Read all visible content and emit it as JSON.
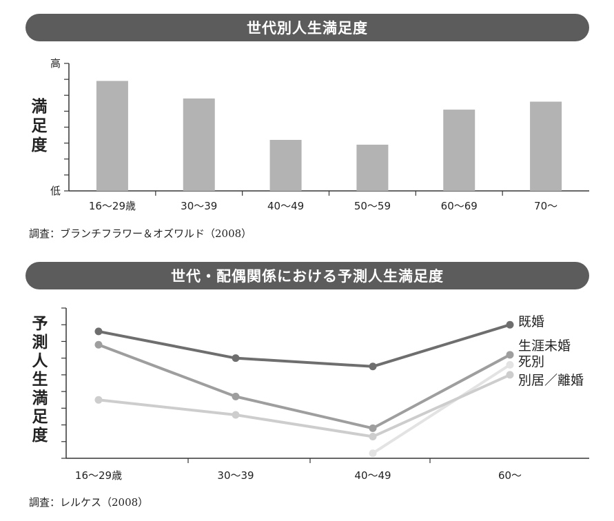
{
  "chart_data": [
    {
      "type": "bar",
      "title": "世代別人生満足度",
      "ylabel": "満足度",
      "y_tick_high": "高",
      "y_tick_low": "低",
      "ylim": [
        0,
        8
      ],
      "grid": false,
      "categories": [
        "16～29歳",
        "30～39",
        "40～49",
        "50～59",
        "60～69",
        "70～"
      ],
      "values": [
        6.9,
        5.8,
        3.2,
        2.9,
        5.1,
        5.6
      ],
      "bar_color": "#b3b3b3",
      "source": "調査：ブランチフラワー＆オズワルド（2008）"
    },
    {
      "type": "line",
      "title": "世代・配偶関係における予測人生満足度",
      "ylabel": "予測人生満足度",
      "ylim": [
        0,
        9
      ],
      "grid": false,
      "categories": [
        "16～29歳",
        "30～39",
        "40～49",
        "60～"
      ],
      "series": [
        {
          "name": "既婚",
          "color": "#6e6e6e",
          "values": [
            7.6,
            6.0,
            5.5,
            8.0
          ]
        },
        {
          "name": "生涯未婚",
          "color": "#9e9e9e",
          "values": [
            6.8,
            3.7,
            1.8,
            6.2
          ]
        },
        {
          "name": "死別",
          "color": "#e3e3e3",
          "values": [
            null,
            null,
            0.3,
            5.6
          ]
        },
        {
          "name": "別居／離婚",
          "color": "#cdcdcd",
          "values": [
            3.5,
            2.6,
            1.3,
            5.0
          ]
        }
      ],
      "source": "調査：レルケス（2008）"
    }
  ]
}
